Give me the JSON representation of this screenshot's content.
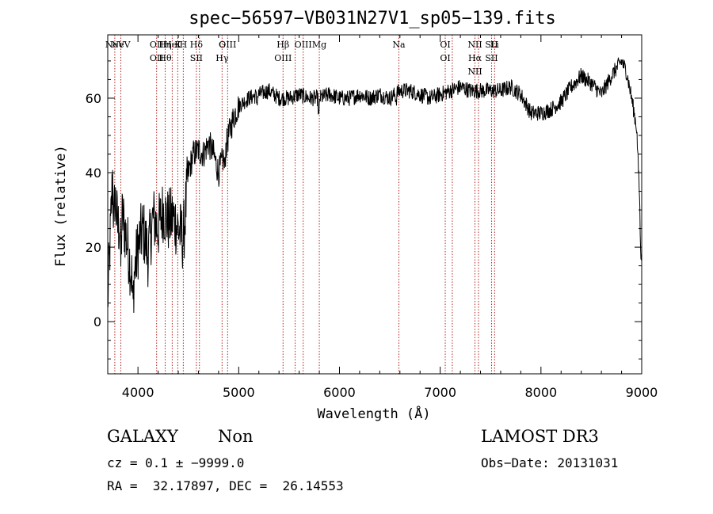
{
  "chart_data": {
    "type": "line",
    "title": "spec−56597−VB031N27V1_sp05−139.fits",
    "xlabel": "Wavelength (Å)",
    "ylabel": "Flux (relative)",
    "xlim": [
      3700,
      9000
    ],
    "ylim": [
      -14,
      77
    ],
    "xticks": [
      4000,
      5000,
      6000,
      7000,
      8000,
      9000
    ],
    "yticks": [
      0,
      20,
      40,
      60
    ],
    "series": [
      {
        "name": "spectrum",
        "anchors": [
          [
            3700,
            5
          ],
          [
            3750,
            40
          ],
          [
            3800,
            25
          ],
          [
            3850,
            28
          ],
          [
            3900,
            20
          ],
          [
            3950,
            10
          ],
          [
            4000,
            20
          ],
          [
            4050,
            25
          ],
          [
            4100,
            18
          ],
          [
            4150,
            28
          ],
          [
            4200,
            25
          ],
          [
            4250,
            30
          ],
          [
            4300,
            27
          ],
          [
            4350,
            28
          ],
          [
            4400,
            25
          ],
          [
            4450,
            22
          ],
          [
            4500,
            40
          ],
          [
            4550,
            45
          ],
          [
            4600,
            46
          ],
          [
            4650,
            45
          ],
          [
            4700,
            48
          ],
          [
            4750,
            45
          ],
          [
            4800,
            40
          ],
          [
            4850,
            44
          ],
          [
            4900,
            50
          ],
          [
            4950,
            55
          ],
          [
            5000,
            58
          ],
          [
            5100,
            60
          ],
          [
            5200,
            61
          ],
          [
            5300,
            62
          ],
          [
            5400,
            60
          ],
          [
            5500,
            60
          ],
          [
            5600,
            61
          ],
          [
            5700,
            60
          ],
          [
            5800,
            60
          ],
          [
            5900,
            61
          ],
          [
            6000,
            60
          ],
          [
            6100,
            60
          ],
          [
            6200,
            61
          ],
          [
            6300,
            60
          ],
          [
            6400,
            61
          ],
          [
            6500,
            60
          ],
          [
            6600,
            62
          ],
          [
            6700,
            62
          ],
          [
            6800,
            61
          ],
          [
            6900,
            60
          ],
          [
            7000,
            61
          ],
          [
            7100,
            62
          ],
          [
            7200,
            63
          ],
          [
            7300,
            62
          ],
          [
            7400,
            62
          ],
          [
            7500,
            62
          ],
          [
            7600,
            62
          ],
          [
            7700,
            63
          ],
          [
            7800,
            61
          ],
          [
            7900,
            56
          ],
          [
            8000,
            56
          ],
          [
            8100,
            57
          ],
          [
            8200,
            59
          ],
          [
            8300,
            63
          ],
          [
            8400,
            66
          ],
          [
            8500,
            64
          ],
          [
            8600,
            61
          ],
          [
            8700,
            66
          ],
          [
            8800,
            70
          ],
          [
            8850,
            67
          ],
          [
            8900,
            60
          ],
          [
            8950,
            52
          ],
          [
            9000,
            20
          ]
        ],
        "features": [
          {
            "wavelength": 3760,
            "depth": -13
          },
          {
            "wavelength": 3830,
            "depth": -12
          },
          {
            "wavelength": 3950,
            "depth": -8
          },
          {
            "wavelength": 4861,
            "depth": -5
          },
          {
            "wavelength": 5180,
            "depth": -2
          },
          {
            "wavelength": 5795,
            "depth": -6
          },
          {
            "wavelength": 6563,
            "depth": -2
          },
          {
            "wavelength": 8990,
            "depth": -10
          }
        ]
      }
    ],
    "reference_lines": [
      {
        "wavelength": 3770,
        "labels": [
          "NeV"
        ]
      },
      {
        "wavelength": 3830,
        "labels": [
          "NeV"
        ]
      },
      {
        "wavelength": 4185,
        "labels": [
          "OII",
          "OII"
        ]
      },
      {
        "wavelength": 4270,
        "labels": [
          "Hη",
          "Hθ"
        ]
      },
      {
        "wavelength": 4340,
        "labels": [
          "HeI"
        ]
      },
      {
        "wavelength": 4395,
        "labels": [
          "K"
        ]
      },
      {
        "wavelength": 4450,
        "labels": [
          "H"
        ]
      },
      {
        "wavelength": 4580,
        "labels": [
          "Hδ",
          "SII"
        ]
      },
      {
        "wavelength": 4610,
        "labels": []
      },
      {
        "wavelength": 4835,
        "labels": [
          "G",
          "Hγ"
        ]
      },
      {
        "wavelength": 4890,
        "labels": [
          "OIII"
        ]
      },
      {
        "wavelength": 5440,
        "labels": [
          "Hβ",
          "OIII"
        ]
      },
      {
        "wavelength": 5560,
        "labels": []
      },
      {
        "wavelength": 5640,
        "labels": [
          "OIII"
        ]
      },
      {
        "wavelength": 5800,
        "labels": [
          "Mg"
        ]
      },
      {
        "wavelength": 6590,
        "labels": [
          "Na"
        ]
      },
      {
        "wavelength": 7050,
        "labels": [
          "OI",
          "OI"
        ]
      },
      {
        "wavelength": 7120,
        "labels": []
      },
      {
        "wavelength": 7345,
        "labels": [
          "NII",
          "Hα",
          "NII"
        ]
      },
      {
        "wavelength": 7380,
        "labels": []
      },
      {
        "wavelength": 7510,
        "labels": [
          "SII",
          "SII"
        ]
      },
      {
        "wavelength": 7540,
        "labels": [
          "Li"
        ]
      }
    ]
  },
  "info": {
    "class_label": "GALAXY",
    "subclass_label": "Non",
    "cz_text": "cz = 0.1 ± −9999.0",
    "radec_text": "RA =  32.17897, DEC =  26.14553",
    "survey": "LAMOST DR3",
    "obs_date_text": "Obs−Date: 20131031"
  },
  "colors": {
    "line": "#000000",
    "reference": "#b22222",
    "background": "#ffffff"
  }
}
